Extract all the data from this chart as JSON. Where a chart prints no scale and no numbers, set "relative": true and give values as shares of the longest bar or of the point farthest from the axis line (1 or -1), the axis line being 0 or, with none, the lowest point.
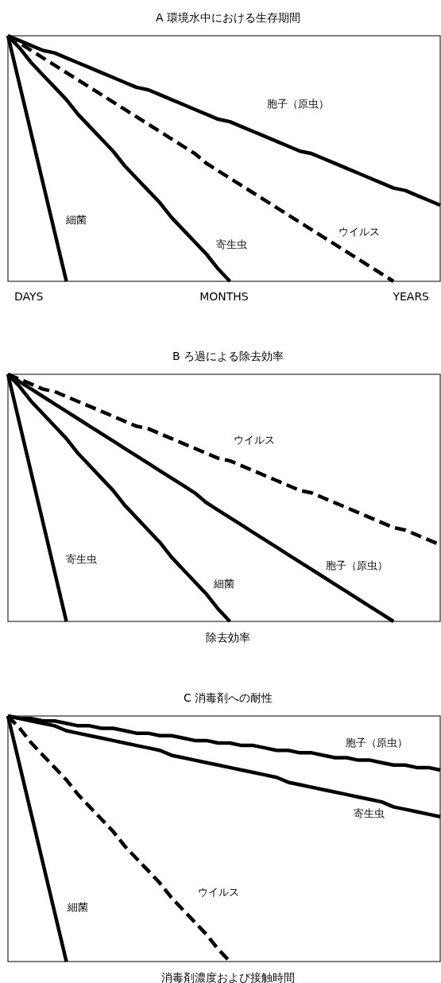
{
  "chart_data": [
    {
      "type": "line",
      "title": "A 環境水中における生存期間",
      "annotations": [
        "DAYS",
        "MONTHS",
        "YEARS"
      ],
      "relative": true,
      "legend": false,
      "categories": [
        null,
        null,
        null,
        null,
        null,
        null,
        null,
        null,
        null,
        null,
        null,
        null,
        null,
        null,
        null,
        null,
        null,
        null,
        null,
        null,
        null,
        null,
        null,
        null,
        null,
        null,
        null,
        null,
        null,
        null,
        null,
        null,
        null,
        null,
        null,
        null,
        null,
        null
      ],
      "series": [
        {
          "name": "細菌",
          "color": "#000000",
          "line_style": "solid",
          "values": [
            1,
            0.8,
            0.6,
            0.4,
            0.2,
            0,
            null,
            null,
            null,
            null,
            null,
            null,
            null,
            null,
            null,
            null,
            null,
            null,
            null,
            null,
            null,
            null,
            null,
            null,
            null,
            null,
            null,
            null,
            null,
            null,
            null,
            null,
            null,
            null,
            null,
            null,
            null,
            null
          ]
        },
        {
          "name": "寄生虫",
          "color": "#000000",
          "line_style": "solid",
          "values": [
            1,
            0.95,
            0.89,
            0.84,
            0.79,
            0.74,
            0.68,
            0.63,
            0.58,
            0.53,
            0.47,
            0.42,
            0.37,
            0.32,
            0.26,
            0.21,
            0.16,
            0.11,
            0.05,
            0,
            null,
            null,
            null,
            null,
            null,
            null,
            null,
            null,
            null,
            null,
            null,
            null,
            null,
            null,
            null,
            null,
            null,
            null
          ]
        },
        {
          "name": "ウイルス",
          "color": "#000000",
          "line_style": "dashed",
          "values": [
            1,
            0.97,
            0.94,
            0.91,
            0.88,
            0.85,
            0.82,
            0.79,
            0.76,
            0.73,
            0.7,
            0.67,
            0.64,
            0.61,
            0.58,
            0.55,
            0.52,
            0.48,
            0.45,
            0.42,
            0.39,
            0.36,
            0.33,
            0.3,
            0.27,
            0.24,
            0.21,
            0.18,
            0.15,
            0.12,
            0.09,
            0.06,
            0.03,
            0,
            null,
            null,
            null,
            null
          ]
        },
        {
          "name": "胞子（原虫）",
          "color": "#000000",
          "line_style": "solid",
          "values": [
            1,
            0.98,
            0.96,
            0.94,
            0.93,
            0.91,
            0.89,
            0.87,
            0.85,
            0.83,
            0.81,
            0.79,
            0.78,
            0.76,
            0.74,
            0.72,
            0.7,
            0.68,
            0.66,
            0.65,
            0.63,
            0.61,
            0.59,
            0.57,
            0.55,
            0.53,
            0.52,
            0.5,
            0.48,
            0.46,
            0.44,
            0.42,
            0.4,
            0.38,
            0.37,
            0.35,
            0.33,
            0.31
          ]
        }
      ]
    },
    {
      "type": "line",
      "title": "B ろ過による除去効率",
      "xlabel": "除去効率",
      "relative": true,
      "legend": false,
      "categories": [
        null,
        null,
        null,
        null,
        null,
        null,
        null,
        null,
        null,
        null,
        null,
        null,
        null,
        null,
        null,
        null,
        null,
        null,
        null,
        null,
        null,
        null,
        null,
        null,
        null,
        null,
        null,
        null,
        null,
        null,
        null,
        null,
        null,
        null,
        null,
        null,
        null,
        null
      ],
      "series": [
        {
          "name": "寄生虫",
          "color": "#000000",
          "line_style": "solid",
          "values": [
            1,
            0.8,
            0.6,
            0.4,
            0.2,
            0,
            null,
            null,
            null,
            null,
            null,
            null,
            null,
            null,
            null,
            null,
            null,
            null,
            null,
            null,
            null,
            null,
            null,
            null,
            null,
            null,
            null,
            null,
            null,
            null,
            null,
            null,
            null,
            null,
            null,
            null,
            null,
            null
          ]
        },
        {
          "name": "細菌",
          "color": "#000000",
          "line_style": "solid",
          "values": [
            1,
            0.95,
            0.89,
            0.84,
            0.79,
            0.74,
            0.68,
            0.63,
            0.58,
            0.53,
            0.47,
            0.42,
            0.37,
            0.32,
            0.26,
            0.21,
            0.16,
            0.11,
            0.05,
            0,
            null,
            null,
            null,
            null,
            null,
            null,
            null,
            null,
            null,
            null,
            null,
            null,
            null,
            null,
            null,
            null,
            null,
            null
          ]
        },
        {
          "name": "胞子（原虫）",
          "color": "#000000",
          "line_style": "solid",
          "values": [
            1,
            0.97,
            0.94,
            0.91,
            0.88,
            0.85,
            0.82,
            0.79,
            0.76,
            0.73,
            0.7,
            0.67,
            0.64,
            0.61,
            0.58,
            0.55,
            0.52,
            0.48,
            0.45,
            0.42,
            0.39,
            0.36,
            0.33,
            0.3,
            0.27,
            0.24,
            0.21,
            0.18,
            0.15,
            0.12,
            0.09,
            0.06,
            0.03,
            0,
            null,
            null,
            null,
            null
          ]
        },
        {
          "name": "ウイルス",
          "color": "#000000",
          "line_style": "dashed",
          "values": [
            1,
            0.98,
            0.96,
            0.94,
            0.93,
            0.91,
            0.89,
            0.87,
            0.85,
            0.83,
            0.81,
            0.79,
            0.78,
            0.76,
            0.74,
            0.72,
            0.7,
            0.68,
            0.66,
            0.65,
            0.63,
            0.61,
            0.59,
            0.57,
            0.55,
            0.53,
            0.52,
            0.5,
            0.48,
            0.46,
            0.44,
            0.42,
            0.4,
            0.38,
            0.37,
            0.35,
            0.33,
            0.31
          ]
        }
      ]
    },
    {
      "type": "line",
      "title": "C 消毒剤への耐性",
      "xlabel": "消毒剤濃度および接触時間",
      "relative": true,
      "legend": false,
      "categories": [
        null,
        null,
        null,
        null,
        null,
        null,
        null,
        null,
        null,
        null,
        null,
        null,
        null,
        null,
        null,
        null,
        null,
        null,
        null,
        null,
        null,
        null,
        null,
        null,
        null,
        null,
        null,
        null,
        null,
        null,
        null,
        null,
        null,
        null,
        null,
        null,
        null,
        null
      ],
      "series": [
        {
          "name": "細菌",
          "color": "#000000",
          "line_style": "solid",
          "values": [
            1,
            0.8,
            0.6,
            0.4,
            0.2,
            0,
            null,
            null,
            null,
            null,
            null,
            null,
            null,
            null,
            null,
            null,
            null,
            null,
            null,
            null,
            null,
            null,
            null,
            null,
            null,
            null,
            null,
            null,
            null,
            null,
            null,
            null,
            null,
            null,
            null,
            null,
            null,
            null
          ]
        },
        {
          "name": "ウイルス",
          "color": "#000000",
          "line_style": "dashed",
          "values": [
            1,
            0.95,
            0.89,
            0.84,
            0.79,
            0.74,
            0.68,
            0.63,
            0.58,
            0.53,
            0.47,
            0.42,
            0.37,
            0.32,
            0.26,
            0.21,
            0.16,
            0.11,
            0.05,
            0,
            null,
            null,
            null,
            null,
            null,
            null,
            null,
            null,
            null,
            null,
            null,
            null,
            null,
            null,
            null,
            null,
            null,
            null
          ]
        },
        {
          "name": "寄生虫",
          "color": "#000000",
          "line_style": "solid",
          "values": [
            1,
            0.99,
            0.98,
            0.97,
            0.96,
            0.94,
            0.93,
            0.92,
            0.91,
            0.9,
            0.89,
            0.88,
            0.87,
            0.86,
            0.84,
            0.83,
            0.82,
            0.81,
            0.8,
            0.79,
            0.78,
            0.77,
            0.76,
            0.75,
            0.73,
            0.72,
            0.71,
            0.7,
            0.69,
            0.68,
            0.67,
            0.66,
            0.65,
            0.63,
            0.62,
            0.61,
            0.6,
            0.59
          ]
        },
        {
          "name": "胞子（原虫）",
          "color": "#000000",
          "line_style": "solid",
          "values": [
            1,
            0.99,
            0.99,
            0.98,
            0.98,
            0.97,
            0.96,
            0.96,
            0.95,
            0.95,
            0.94,
            0.93,
            0.93,
            0.92,
            0.92,
            0.91,
            0.9,
            0.9,
            0.89,
            0.89,
            0.88,
            0.88,
            0.87,
            0.86,
            0.86,
            0.85,
            0.85,
            0.84,
            0.83,
            0.83,
            0.82,
            0.82,
            0.81,
            0.8,
            0.8,
            0.79,
            0.79,
            0.78
          ]
        }
      ]
    }
  ]
}
